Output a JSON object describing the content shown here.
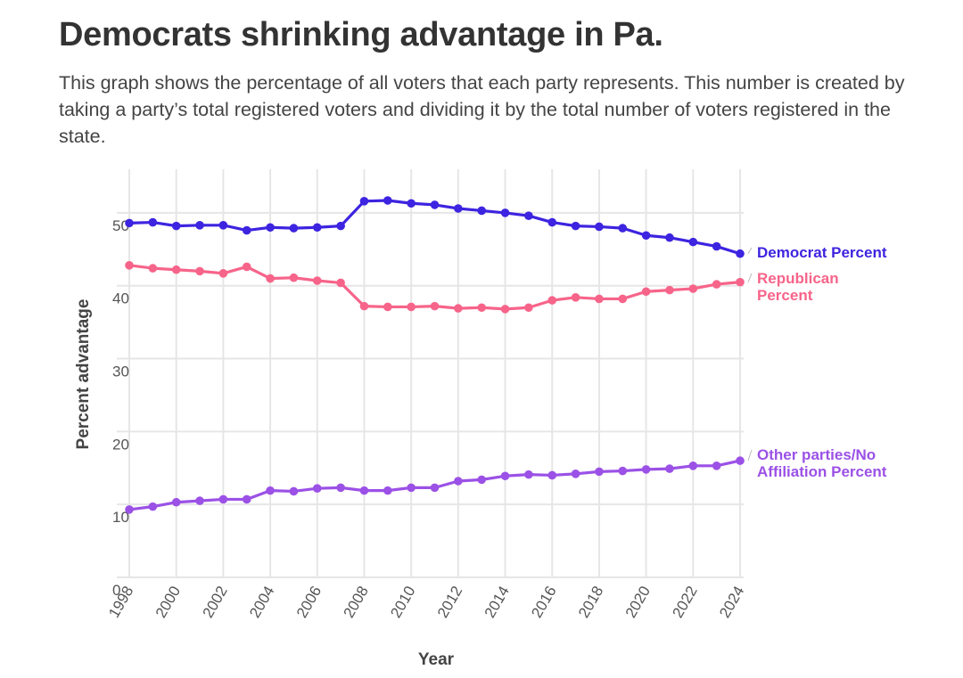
{
  "chart_data": {
    "type": "line",
    "title": "Democrats shrinking advantage in Pa.",
    "subtitle": "This graph shows the percentage of all voters that each party represents. This number is created by taking a party’s total registered voters and dividing it by the total number of voters registered in the state.",
    "xlabel": "Year",
    "ylabel": "Percent advantage",
    "ylim": [
      0,
      55
    ],
    "yticks": [
      0,
      10,
      20,
      30,
      40,
      50
    ],
    "xlim": [
      1998,
      2024
    ],
    "xticks": [
      1998,
      2000,
      2002,
      2004,
      2006,
      2008,
      2010,
      2012,
      2014,
      2016,
      2018,
      2020,
      2022,
      2024
    ],
    "grid": true,
    "legend": "direct labels at right end of each line",
    "x": [
      1998,
      1999,
      2000,
      2001,
      2002,
      2003,
      2004,
      2005,
      2006,
      2007,
      2008,
      2009,
      2010,
      2011,
      2012,
      2013,
      2014,
      2015,
      2016,
      2017,
      2018,
      2019,
      2020,
      2021,
      2022,
      2023,
      2024
    ],
    "series": [
      {
        "name": "Democrat Percent",
        "label_lines": [
          "Democrat Percent"
        ],
        "color": "#3d24e0",
        "values": [
          48.6,
          48.7,
          48.2,
          48.3,
          48.3,
          47.6,
          48.0,
          47.9,
          48.0,
          48.2,
          51.6,
          51.7,
          51.3,
          51.1,
          50.6,
          50.3,
          50.0,
          49.6,
          48.7,
          48.2,
          48.1,
          47.9,
          46.9,
          46.6,
          46.0,
          45.4,
          44.4
        ]
      },
      {
        "name": "Republican Percent",
        "label_lines": [
          "Republican",
          "Percent"
        ],
        "color": "#f7648a",
        "values": [
          42.8,
          42.4,
          42.2,
          42.0,
          41.7,
          42.6,
          41.0,
          41.1,
          40.7,
          40.4,
          37.2,
          37.1,
          37.1,
          37.2,
          36.9,
          37.0,
          36.8,
          37.0,
          38.0,
          38.4,
          38.2,
          38.2,
          39.2,
          39.4,
          39.6,
          40.2,
          40.5
        ]
      },
      {
        "name": "Other parties/No Affiliation Percent",
        "label_lines": [
          "Other parties/No",
          "Affiliation Percent"
        ],
        "color": "#9b51e6",
        "values": [
          9.3,
          9.7,
          10.3,
          10.5,
          10.7,
          10.7,
          11.9,
          11.8,
          12.2,
          12.3,
          11.9,
          11.9,
          12.3,
          12.3,
          13.2,
          13.4,
          13.9,
          14.1,
          14.0,
          14.2,
          14.5,
          14.6,
          14.8,
          14.9,
          15.3,
          15.3,
          16.0
        ]
      }
    ]
  }
}
